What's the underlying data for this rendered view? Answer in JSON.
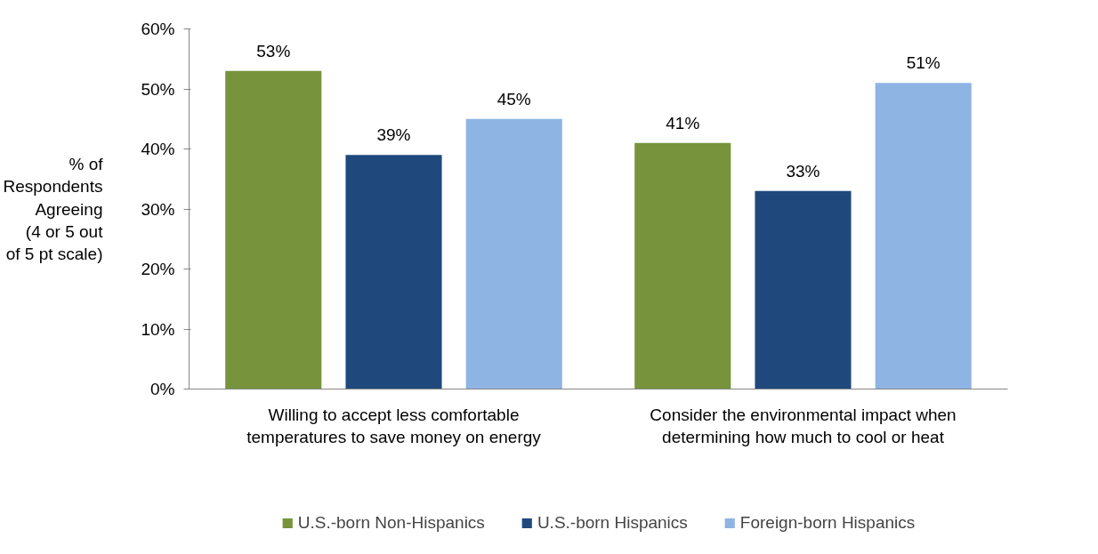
{
  "chart_data": {
    "type": "bar",
    "ylabel": "% of\nRespondents\nAgreeing\n(4 or 5 out\nof 5 pt scale)",
    "categories": [
      "Willing to accept less comfortable\ntemperatures to save money on energy",
      "Consider the environmental impact when\ndetermining how much to cool or heat"
    ],
    "series": [
      {
        "name": "U.S.-born Non-Hispanics",
        "color": "#77933c",
        "values": [
          53,
          41
        ],
        "value_labels": [
          "53%",
          "41%"
        ]
      },
      {
        "name": "U.S.-born Hispanics",
        "color": "#1f497d",
        "values": [
          39,
          33
        ],
        "value_labels": [
          "39%",
          "33%"
        ]
      },
      {
        "name": "Foreign-born Hispanics",
        "color": "#8eb4e3",
        "values": [
          45,
          51
        ],
        "value_labels": [
          "45%",
          "51%"
        ]
      }
    ],
    "ylim": [
      0,
      60
    ],
    "yticks": [
      {
        "value": 0,
        "label": "0%"
      },
      {
        "value": 10,
        "label": "10%"
      },
      {
        "value": 20,
        "label": "20%"
      },
      {
        "value": 30,
        "label": "30%"
      },
      {
        "value": 40,
        "label": "40%"
      },
      {
        "value": 50,
        "label": "50%"
      },
      {
        "value": 60,
        "label": "60%"
      }
    ],
    "grid": false,
    "legend": "bottom"
  }
}
